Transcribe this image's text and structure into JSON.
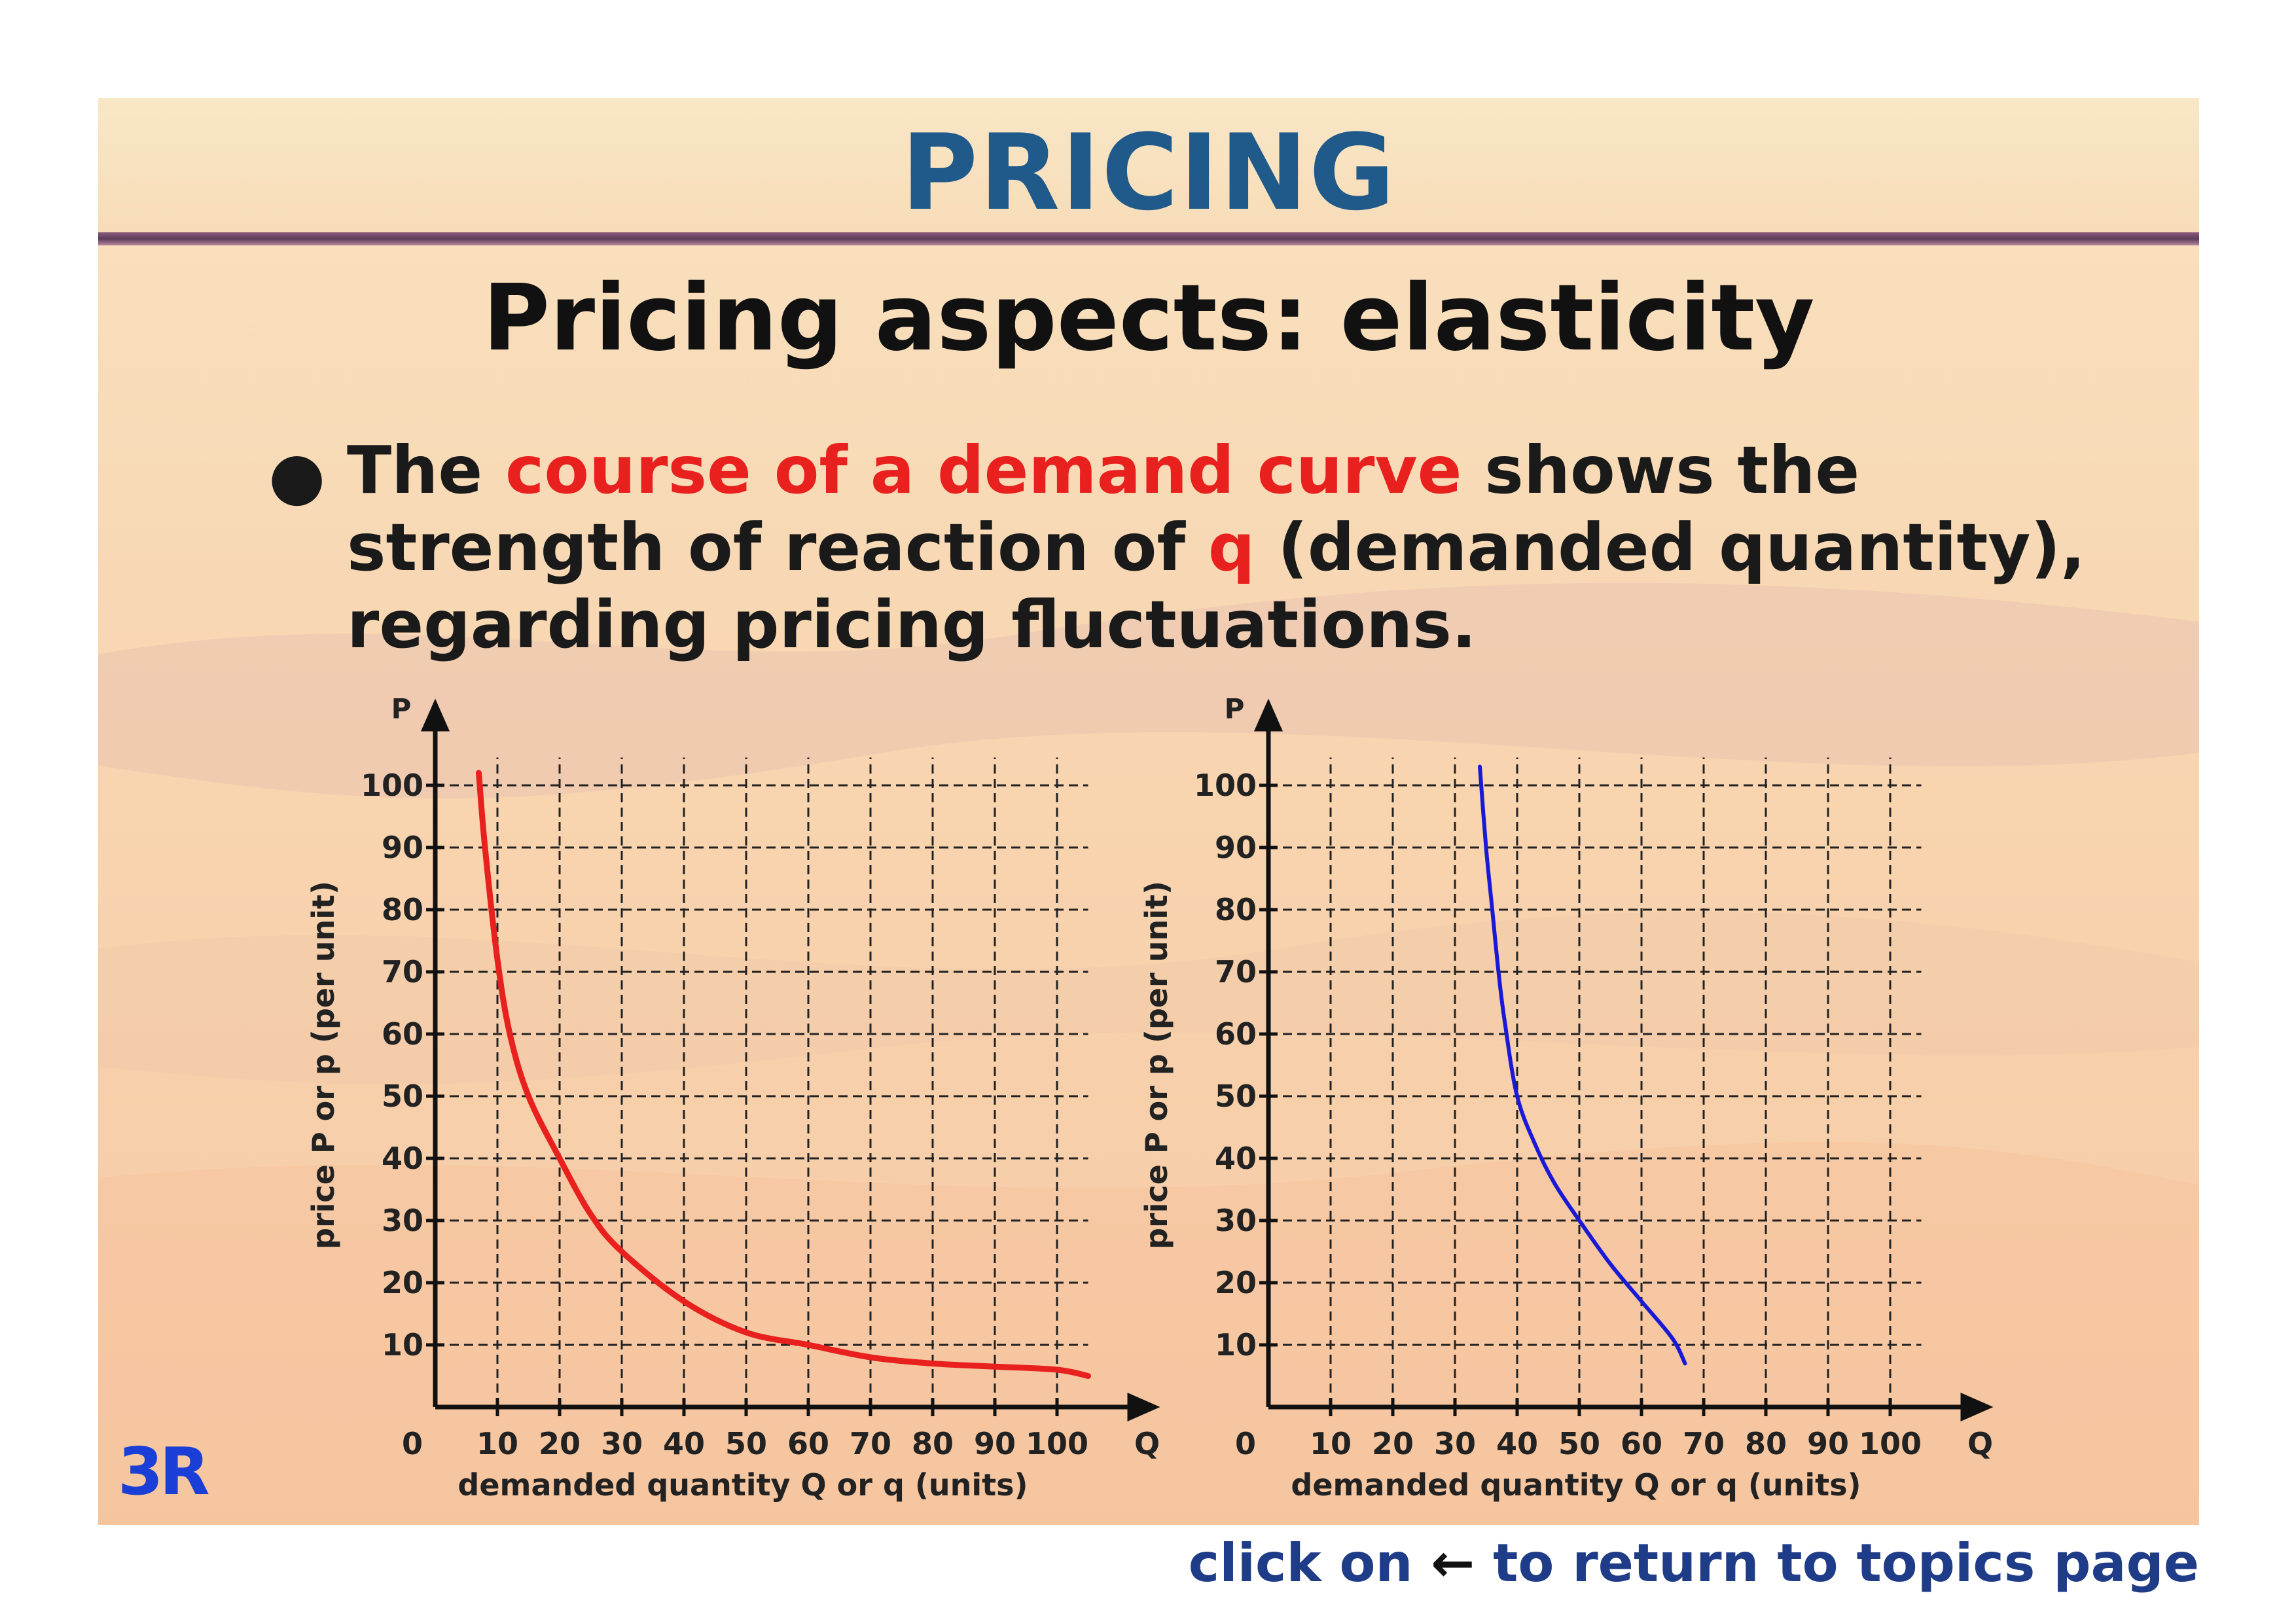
{
  "header": {
    "title": "PRICING"
  },
  "subtitle": "Pricing aspects: elasticity",
  "bullet": {
    "part1": "The ",
    "highlight1": "course of a demand curve",
    "part2": " shows the strength of reaction of ",
    "highlight2": "q",
    "part3": " (demanded quantity), regarding pricing fluctuations."
  },
  "logo": "3R",
  "footer": {
    "pre": "click on ",
    "arrow": "←",
    "post": " to return to topics page"
  },
  "colors": {
    "title": "#1f5a8a",
    "highlight": "#e8201e",
    "curve_left": "#e8201e",
    "curve_right": "#1a1ad6",
    "footer": "#1f3c88"
  },
  "chart_data": [
    {
      "type": "line",
      "ylabel": "price  P or p (per unit)",
      "xlabel": "demanded quantity  Q or q (units)",
      "x_axis_letter": "Q",
      "y_axis_letter": "P",
      "origin_label": "0",
      "x_ticks": [
        "10",
        "20",
        "30",
        "40",
        "50",
        "60",
        "70",
        "80",
        "90",
        "100"
      ],
      "y_ticks": [
        "10",
        "20",
        "30",
        "40",
        "50",
        "60",
        "70",
        "80",
        "90",
        "100"
      ],
      "xlim": [
        0,
        105
      ],
      "ylim": [
        0,
        105
      ],
      "grid": true,
      "series": [
        {
          "color": "#e8201e",
          "x": [
            7,
            8,
            10,
            12,
            15,
            20,
            25,
            30,
            40,
            50,
            60,
            70,
            80,
            90,
            100,
            105
          ],
          "y": [
            102,
            90,
            72,
            60,
            50,
            40,
            31,
            25,
            17,
            12,
            10,
            8,
            7,
            6.5,
            6,
            5
          ]
        }
      ]
    },
    {
      "type": "line",
      "ylabel": "price  P or p (per unit)",
      "xlabel": "demanded quantity  Q or q (units)",
      "x_axis_letter": "Q",
      "y_axis_letter": "P",
      "origin_label": "0",
      "x_ticks": [
        "10",
        "20",
        "30",
        "40",
        "50",
        "60",
        "70",
        "80",
        "90",
        "100"
      ],
      "y_ticks": [
        "10",
        "20",
        "30",
        "40",
        "50",
        "60",
        "70",
        "80",
        "90",
        "100"
      ],
      "xlim": [
        0,
        105
      ],
      "ylim": [
        0,
        105
      ],
      "grid": true,
      "series": [
        {
          "color": "#1a1ad6",
          "x": [
            34,
            35,
            36,
            37,
            38,
            40,
            43,
            46,
            50,
            55,
            60,
            65,
            67
          ],
          "y": [
            103,
            90,
            80,
            70,
            62,
            50,
            42,
            36,
            30,
            23,
            17,
            11,
            7
          ]
        }
      ]
    }
  ]
}
